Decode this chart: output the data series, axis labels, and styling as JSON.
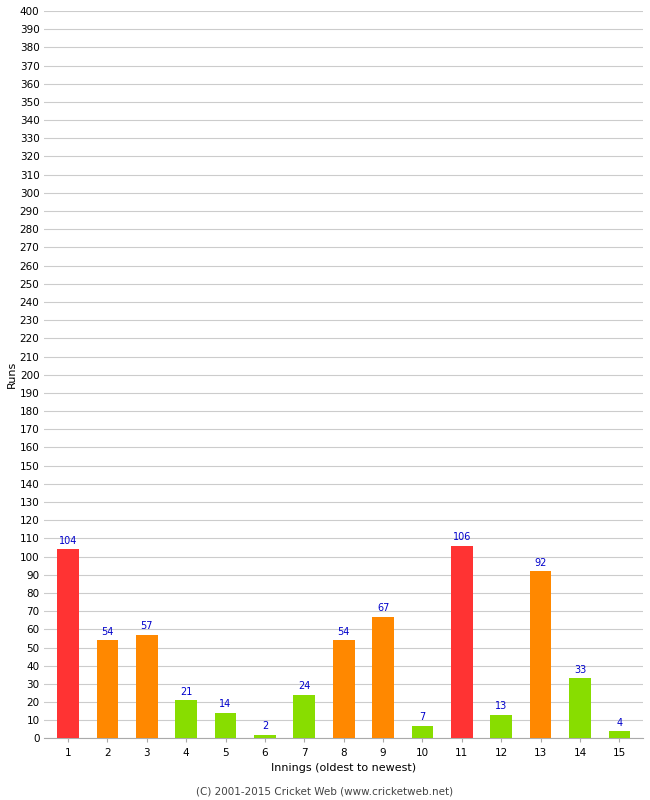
{
  "innings": [
    1,
    2,
    3,
    4,
    5,
    6,
    7,
    8,
    9,
    10,
    11,
    12,
    13,
    14,
    15
  ],
  "values": [
    104,
    54,
    57,
    21,
    14,
    2,
    24,
    54,
    67,
    7,
    106,
    13,
    92,
    33,
    4
  ],
  "colors": [
    "#ff3333",
    "#ff8800",
    "#ff8800",
    "#88dd00",
    "#88dd00",
    "#88dd00",
    "#88dd00",
    "#ff8800",
    "#ff8800",
    "#88dd00",
    "#ff3333",
    "#88dd00",
    "#ff8800",
    "#88dd00",
    "#88dd00"
  ],
  "ylabel": "Runs",
  "xlabel": "Innings (oldest to newest)",
  "ylim": [
    0,
    400
  ],
  "yticks": [
    0,
    10,
    20,
    30,
    40,
    50,
    60,
    70,
    80,
    90,
    100,
    110,
    120,
    130,
    140,
    150,
    160,
    170,
    180,
    190,
    200,
    210,
    220,
    230,
    240,
    250,
    260,
    270,
    280,
    290,
    300,
    310,
    320,
    330,
    340,
    350,
    360,
    370,
    380,
    390,
    400
  ],
  "label_color": "#0000cc",
  "background_color": "#ffffff",
  "grid_color": "#cccccc",
  "footer": "(C) 2001-2015 Cricket Web (www.cricketweb.net)",
  "bar_width": 0.55
}
